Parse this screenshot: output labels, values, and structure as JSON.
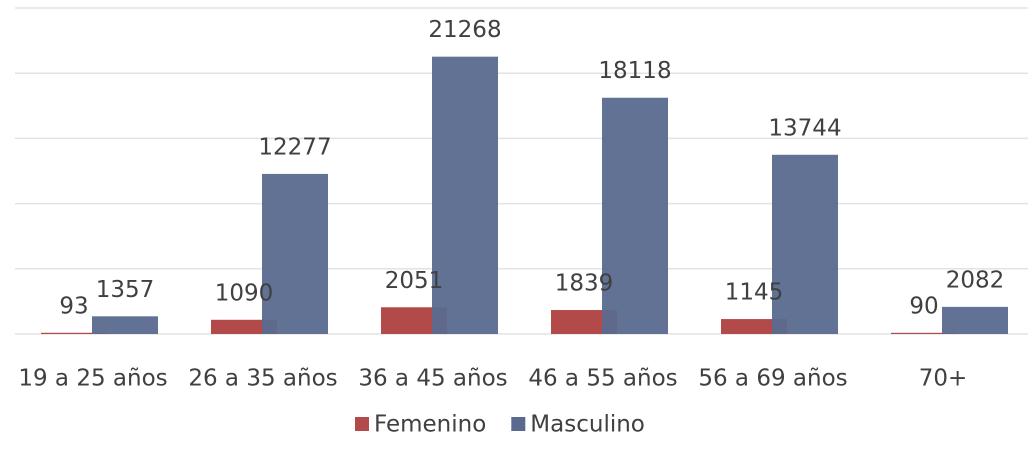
{
  "chart_data": {
    "type": "bar",
    "categories": [
      "19 a 25 años",
      "26 a 35 años",
      "36 a 45 años",
      "46 a 55 años",
      "56 a 69 años",
      "70+"
    ],
    "series": [
      {
        "name": "Femenino",
        "color": "#b34a4a",
        "values": [
          93,
          1090,
          2051,
          1839,
          1145,
          90
        ]
      },
      {
        "name": "Masculino",
        "color": "#5a6a8e",
        "values": [
          1357,
          12277,
          21268,
          18118,
          13744,
          2082
        ]
      }
    ],
    "ylim": [
      0,
      25000
    ],
    "yticks": [
      0,
      5000,
      10000,
      15000,
      20000,
      25000
    ],
    "grid": true,
    "legend": "bottom"
  }
}
